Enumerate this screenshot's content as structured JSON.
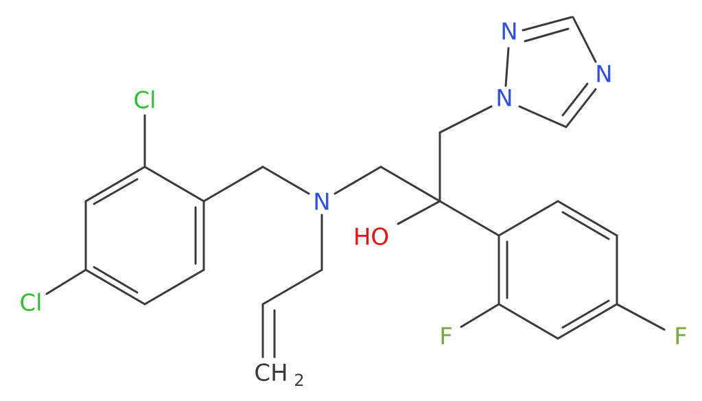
{
  "atoms": [
    {
      "label": "Cl"
    },
    {
      "label": "Cl"
    },
    {
      "label": "N"
    },
    {
      "label": "HO"
    },
    {
      "label": "N"
    },
    {
      "label": "N"
    },
    {
      "label": "N"
    },
    {
      "label": "F"
    },
    {
      "label": "F"
    },
    {
      "label": "CH",
      "subscript": "2"
    }
  ]
}
